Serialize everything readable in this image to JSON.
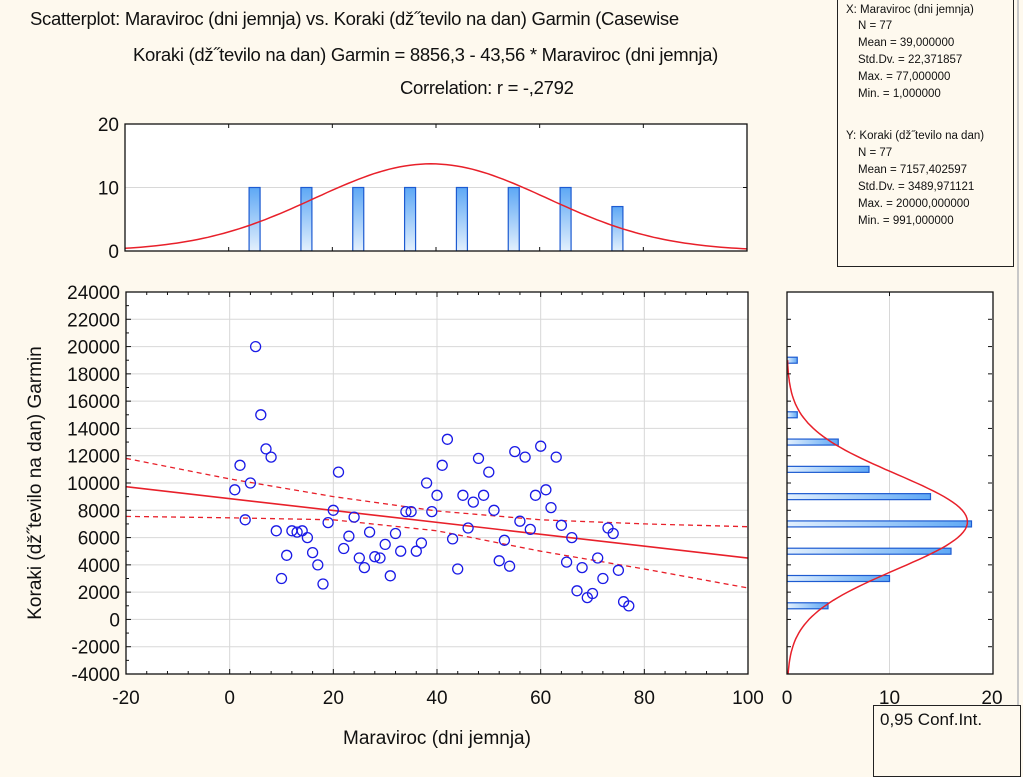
{
  "header": {
    "title": "Scatterplot: Maraviroc (dni jemnja) vs. Koraki (dž˝tevilo na dan) Garmin (Casewise",
    "equation": "Koraki (dž˝tevilo na dan) Garmin = 8856,3 - 43,56  * Maraviroc (dni jemnja)",
    "correlation": "Correlation: r = -,2792"
  },
  "stats": {
    "x_header": "X:  Maraviroc (dni jemnja)",
    "x_rows": [
      "N = 77",
      "Mean = 39,000000",
      "Std.Dv. = 22,371857",
      "Max. = 77,000000",
      "Min. = 1,000000"
    ],
    "y_header": "Y:  Koraki (dž˝tevilo na dan)",
    "y_rows": [
      "N = 77",
      "Mean = 7157,402597",
      "Std.Dv. = 3489,971121",
      "Max. = 20000,000000",
      "Min. = 991,000000"
    ]
  },
  "legend": {
    "label": "0,95 Conf.Int."
  },
  "colors": {
    "background": "#fef9ee",
    "points": "#1a1ae6",
    "fit_line": "#e8202a",
    "bar_fill_top": "#5ea8f5",
    "bar_fill_bottom": "#e3f0fd",
    "bar_stroke": "#1d5bd1",
    "grid": "#d8d8d8"
  },
  "chart_data": [
    {
      "type": "scatter",
      "name": "main-scatter",
      "xlabel": "Maraviroc (dni jemnja)",
      "ylabel": "Koraki (dž˝tevilo na dan) Garmin",
      "xlim": [
        -20,
        100
      ],
      "ylim": [
        -4000,
        24000
      ],
      "x_ticks": [
        "-20",
        "0",
        "20",
        "40",
        "60",
        "80",
        "100"
      ],
      "y_ticks": [
        "24000",
        "22000",
        "20000",
        "18000",
        "16000",
        "14000",
        "12000",
        "10000",
        "8000",
        "6000",
        "4000",
        "2000",
        "0",
        "-2000",
        "-4000"
      ],
      "grid": true,
      "points": [
        [
          1,
          9500
        ],
        [
          2,
          11300
        ],
        [
          3,
          7300
        ],
        [
          4,
          10000
        ],
        [
          5,
          20000
        ],
        [
          6,
          15000
        ],
        [
          7,
          12500
        ],
        [
          8,
          11900
        ],
        [
          9,
          6500
        ],
        [
          10,
          3000
        ],
        [
          11,
          4700
        ],
        [
          12,
          6500
        ],
        [
          13,
          6400
        ],
        [
          14,
          6500
        ],
        [
          15,
          6000
        ],
        [
          16,
          4900
        ],
        [
          17,
          4000
        ],
        [
          18,
          2600
        ],
        [
          19,
          7100
        ],
        [
          20,
          8000
        ],
        [
          21,
          10800
        ],
        [
          22,
          5200
        ],
        [
          23,
          6100
        ],
        [
          24,
          7500
        ],
        [
          25,
          4500
        ],
        [
          26,
          3800
        ],
        [
          27,
          6400
        ],
        [
          28,
          4600
        ],
        [
          29,
          4500
        ],
        [
          30,
          5500
        ],
        [
          31,
          3200
        ],
        [
          32,
          6300
        ],
        [
          33,
          5000
        ],
        [
          34,
          7900
        ],
        [
          35,
          7900
        ],
        [
          36,
          5000
        ],
        [
          37,
          5600
        ],
        [
          38,
          10000
        ],
        [
          39,
          7900
        ],
        [
          40,
          9100
        ],
        [
          41,
          11300
        ],
        [
          42,
          13200
        ],
        [
          43,
          5900
        ],
        [
          44,
          3700
        ],
        [
          45,
          9100
        ],
        [
          46,
          6700
        ],
        [
          47,
          8600
        ],
        [
          48,
          11800
        ],
        [
          49,
          9100
        ],
        [
          50,
          10800
        ],
        [
          51,
          8000
        ],
        [
          52,
          4300
        ],
        [
          53,
          5800
        ],
        [
          54,
          3900
        ],
        [
          55,
          12300
        ],
        [
          56,
          7200
        ],
        [
          57,
          11900
        ],
        [
          58,
          6600
        ],
        [
          59,
          9100
        ],
        [
          60,
          12700
        ],
        [
          61,
          9500
        ],
        [
          62,
          8200
        ],
        [
          63,
          11900
        ],
        [
          64,
          6900
        ],
        [
          65,
          4200
        ],
        [
          66,
          6000
        ],
        [
          67,
          2100
        ],
        [
          68,
          3800
        ],
        [
          69,
          1600
        ],
        [
          70,
          1900
        ],
        [
          71,
          4500
        ],
        [
          72,
          3000
        ],
        [
          73,
          6700
        ],
        [
          74,
          6300
        ],
        [
          75,
          3600
        ],
        [
          76,
          1300
        ],
        [
          77,
          991
        ]
      ],
      "regression": {
        "intercept": 8856.3,
        "slope": -43.56
      },
      "confidence_band": {
        "level": 0.95,
        "upper": [
          [
            -20,
            11800
          ],
          [
            0,
            10300
          ],
          [
            20,
            9000
          ],
          [
            40,
            7950
          ],
          [
            60,
            7300
          ],
          [
            80,
            7000
          ],
          [
            100,
            6800
          ]
        ],
        "lower": [
          [
            -20,
            7550
          ],
          [
            0,
            7450
          ],
          [
            20,
            7300
          ],
          [
            40,
            6500
          ],
          [
            60,
            5000
          ],
          [
            80,
            3700
          ],
          [
            100,
            2300
          ]
        ]
      }
    },
    {
      "type": "bar",
      "name": "x-histogram",
      "xlim": [
        -20,
        100
      ],
      "ylim": [
        0,
        20
      ],
      "y_ticks": [
        "20",
        "10",
        "0"
      ],
      "categories": [
        5,
        15,
        25,
        35,
        45,
        55,
        65,
        75
      ],
      "values": [
        10,
        10,
        10,
        10,
        10,
        10,
        10,
        7
      ],
      "normal_curve": {
        "mean": 39.0,
        "sd": 22.371857,
        "n": 77,
        "bin_width": 10
      }
    },
    {
      "type": "bar",
      "name": "y-histogram",
      "orientation": "horizontal",
      "xlim": [
        0,
        20
      ],
      "ylim": [
        -4000,
        24000
      ],
      "x_ticks": [
        "0",
        "10",
        "20"
      ],
      "categories": [
        1000,
        3000,
        5000,
        7000,
        9000,
        11000,
        13000,
        15000,
        17000,
        19000
      ],
      "values": [
        4,
        10,
        16,
        18,
        14,
        8,
        5,
        1,
        0,
        1
      ],
      "normal_curve": {
        "mean": 7157.402597,
        "sd": 3489.971121,
        "n": 77,
        "bin_width": 2000
      }
    }
  ]
}
